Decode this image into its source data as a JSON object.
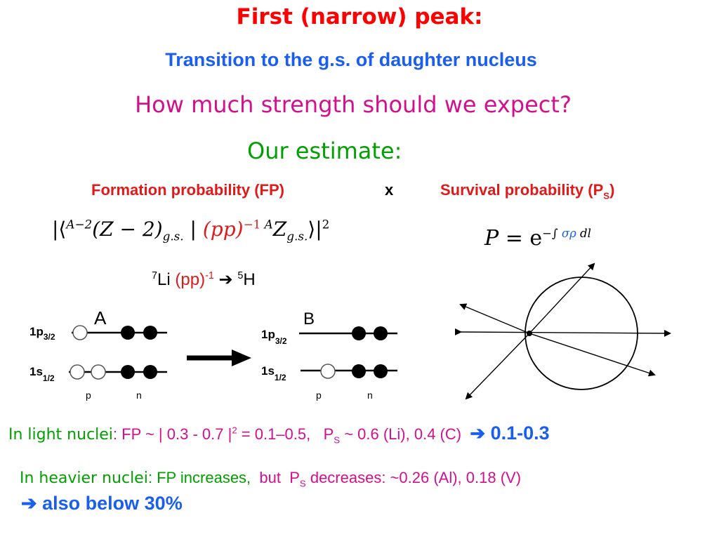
{
  "title": "First (narrow) peak:",
  "subtitle": "Transition to the g.s. of daughter nucleus",
  "question": "How much strength should we expect?",
  "estimate": "Our estimate:",
  "factors": {
    "fp": "Formation probability  (FP)",
    "times": "x",
    "ps_prefix": "Survival probability (P",
    "ps_sub": "S",
    "ps_suffix": ")"
  },
  "formula_fp": {
    "bar_open": "|⟨",
    "sup_a2": "A−2",
    "z2": "(Z − 2)",
    "gs1": "g.s.",
    "mid": " | ",
    "pp": "(pp)",
    "pp_exp": "−1",
    "sup_a": "A",
    "z": "Z",
    "gs2": "g.s.",
    "bar_close": "⟩|",
    "sq": "2"
  },
  "formula_ps": {
    "p": "P",
    "eq": " = e",
    "exp_pre": "−∫",
    "sigma_rho": "σρ",
    "dl": "dl"
  },
  "reaction": {
    "li_mass": "7",
    "li": "Li",
    "pp": "(pp)",
    "pp_exp": "-1",
    "arrow": "➔",
    "h_mass": "5",
    "h": "H"
  },
  "diagram": {
    "panel_a": "A",
    "panel_b": "B",
    "p32_main": "1p",
    "p32_sub": "3/2",
    "s12_main": "1s",
    "s12_sub": "1/2",
    "proton": "p",
    "neutron": "n"
  },
  "light": {
    "lead": "In light nuclei",
    "fp": ": FP ~ | 0.3 - 0.7 |",
    "fp_exp": "2",
    "fp_val": "  = 0.1–0.5,",
    "ps": "P",
    "ps_sub": "S",
    "ps_val": " ~ 0.6 (Li), 0.4 (C)",
    "arrow": "➔",
    "result": " 0.1-0.3"
  },
  "heavy": {
    "lead": "In heavier nuclei",
    "fp": ": FP increases,",
    "but": "but",
    "ps": "P",
    "ps_sub": "S",
    "ps_val": " decreases: ~0.26 (Al), 0.18 (V)"
  },
  "conclusion": {
    "arrow": "➔",
    "text": " also below 30%"
  },
  "colors": {
    "red": "#ff0000",
    "blue": "#1a5ef0",
    "magenta": "#d40f8c",
    "green": "#00a000",
    "crimson": "#e01a1a",
    "black": "#000000"
  }
}
